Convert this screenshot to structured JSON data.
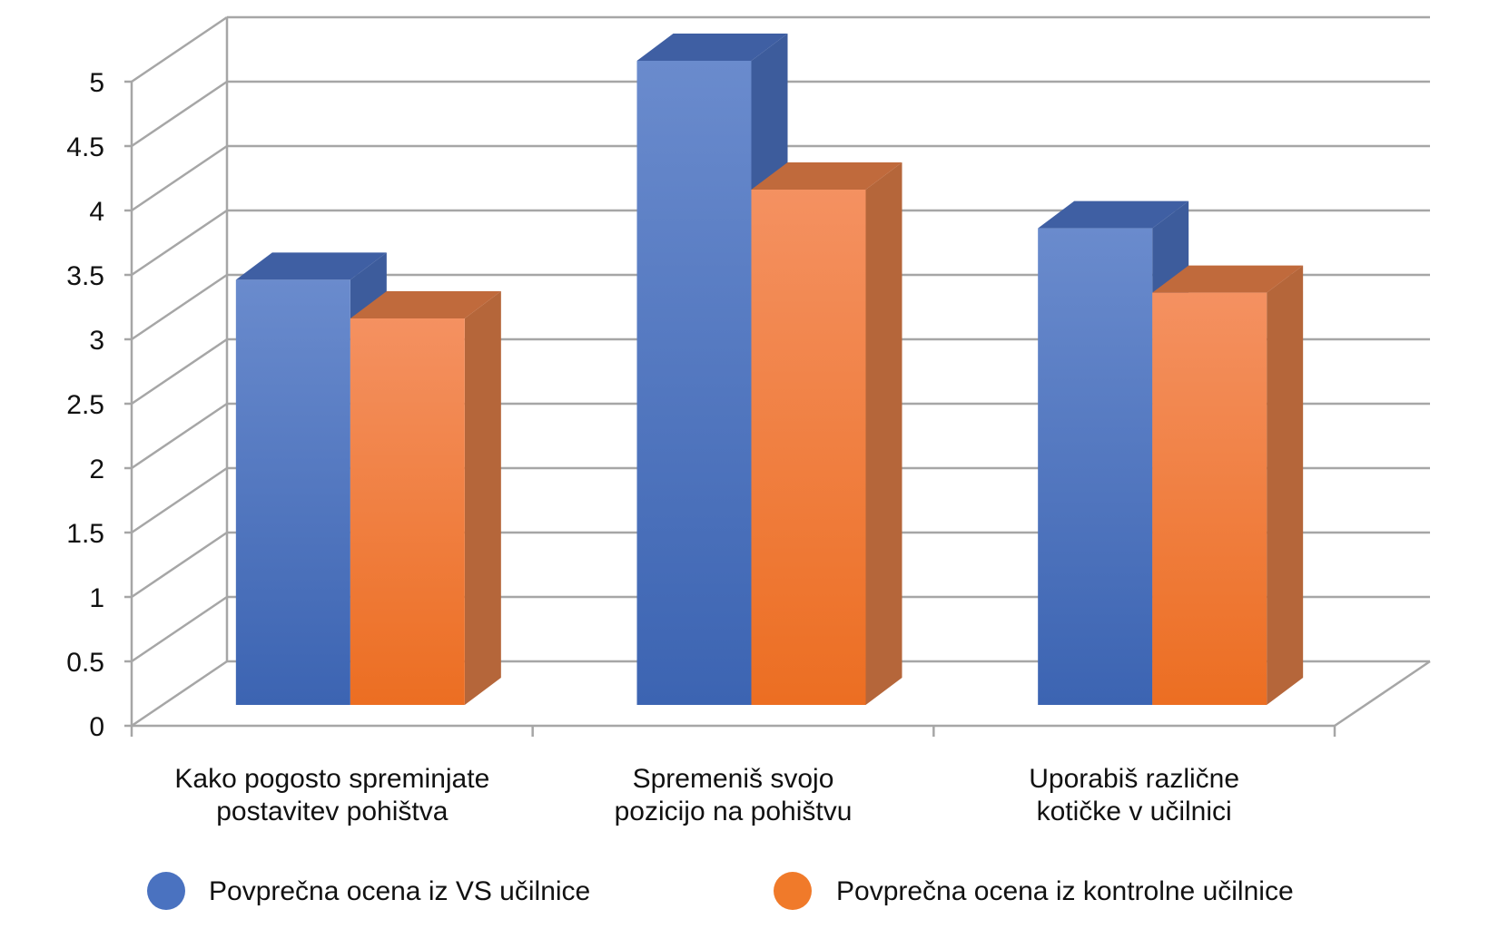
{
  "chart_data": {
    "type": "bar",
    "title": "",
    "xlabel": "",
    "ylabel": "",
    "ylim": [
      0,
      5
    ],
    "yticks": [
      "0",
      "0.5",
      "1",
      "1.5",
      "2",
      "2.5",
      "3",
      "3.5",
      "4",
      "4.5",
      "5"
    ],
    "grid": true,
    "legend_position": "bottom",
    "categories": [
      [
        "Kako pogosto spreminjate",
        "postavitev pohištva"
      ],
      [
        "Spremeniš svojo",
        "pozicijo na pohištvu"
      ],
      [
        "Uporabiš različne",
        "kotičke v učilnici"
      ]
    ],
    "series": [
      {
        "name": "Povprečna ocena iz VS učilnice",
        "values": [
          3.3,
          5.0,
          3.7
        ],
        "color": "#4a72c0"
      },
      {
        "name": "Povprečna ocena iz kontrolne učilnice",
        "values": [
          3.0,
          4.0,
          3.2
        ],
        "color": "#f07a2a"
      }
    ]
  }
}
